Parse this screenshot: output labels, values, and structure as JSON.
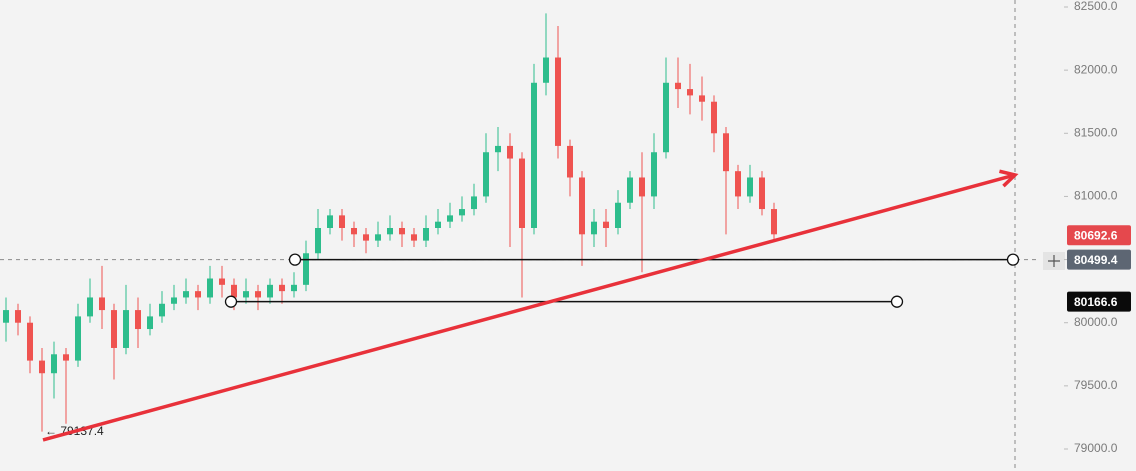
{
  "chart_data": {
    "type": "candlestick",
    "open": [
      80000,
      80100,
      80000,
      79700,
      79600,
      79750,
      79700,
      80050,
      80200,
      80100,
      79800,
      80100,
      79950,
      80050,
      80150,
      80200,
      80250,
      80200,
      80350,
      80300,
      80200,
      80250,
      80200,
      80300,
      80250,
      80300,
      80550,
      80750,
      80850,
      80750,
      80700,
      80650,
      80700,
      80750,
      80700,
      80650,
      80750,
      80800,
      80850,
      80900,
      81000,
      81350,
      81400,
      81300,
      80750,
      81900,
      82100,
      81400,
      81150,
      80700,
      80800,
      80750,
      80950,
      81150,
      81000,
      81350,
      81900,
      81850,
      81800,
      81750,
      81500,
      81200,
      81000,
      81150,
      80900
    ],
    "high": [
      80200,
      80150,
      80050,
      79800,
      79850,
      79800,
      80150,
      80350,
      80450,
      80150,
      80300,
      80200,
      80150,
      80250,
      80300,
      80350,
      80300,
      80450,
      80450,
      80350,
      80350,
      80300,
      80350,
      80350,
      80400,
      80650,
      80900,
      80900,
      80900,
      80800,
      80750,
      80800,
      80850,
      80800,
      80750,
      80850,
      80900,
      80950,
      81000,
      81100,
      81500,
      81550,
      81500,
      81350,
      82050,
      82450,
      82350,
      81450,
      81200,
      80900,
      80900,
      81050,
      81200,
      81350,
      81500,
      82100,
      82100,
      82050,
      81950,
      81800,
      81550,
      81250,
      81250,
      81200,
      80950
    ],
    "low": [
      79850,
      79900,
      79600,
      79137.4,
      79400,
      79200,
      79650,
      80000,
      79950,
      79550,
      79750,
      79800,
      79900,
      80000,
      80100,
      80150,
      80100,
      80150,
      80200,
      80100,
      80150,
      80100,
      80150,
      80150,
      80200,
      80250,
      80500,
      80700,
      80650,
      80600,
      80550,
      80600,
      80650,
      80600,
      80600,
      80600,
      80700,
      80750,
      80800,
      80850,
      80950,
      81200,
      80600,
      80200,
      80700,
      81800,
      81300,
      81000,
      80450,
      80600,
      80600,
      80700,
      80900,
      80400,
      80900,
      81300,
      81700,
      81650,
      81600,
      81350,
      80700,
      80900,
      80950,
      80850,
      80650
    ],
    "close": [
      80100,
      80000,
      79700,
      79600,
      79750,
      79700,
      80050,
      80200,
      80100,
      79800,
      80100,
      79950,
      80050,
      80150,
      80200,
      80250,
      80200,
      80350,
      80300,
      80200,
      80250,
      80200,
      80300,
      80250,
      80300,
      80550,
      80750,
      80850,
      80750,
      80700,
      80650,
      80700,
      80750,
      80700,
      80650,
      80750,
      80800,
      80850,
      80900,
      81000,
      81350,
      81400,
      81300,
      80750,
      81900,
      82100,
      81400,
      81150,
      80700,
      80800,
      80750,
      80950,
      81150,
      81000,
      81350,
      81900,
      81850,
      81800,
      81750,
      81500,
      81200,
      81000,
      81150,
      80900,
      80700
    ],
    "up_color": "#2dbd8c",
    "down_color": "#ef5350",
    "ylim": [
      79000,
      82500
    ],
    "yticks": [
      {
        "value": 79000,
        "label": "79000.0"
      },
      {
        "value": 79500,
        "label": "79500.0"
      },
      {
        "value": 80000,
        "label": "80000.0"
      },
      {
        "value": 80500,
        "label": "80500.0"
      },
      {
        "value": 81000,
        "label": "81000.0"
      },
      {
        "value": 81500,
        "label": "81500.0"
      },
      {
        "value": 82000,
        "label": "82000.0"
      },
      {
        "value": 82500,
        "label": "82500.0"
      }
    ],
    "low_label": "← 79137.4",
    "price_labels": [
      80692.6,
      80499.4,
      80166.6
    ],
    "price_label_colors": [
      "#e5484d",
      "#5d6673",
      "#0a0a0a"
    ],
    "horizontal_lines": [
      80499.4,
      80166.6
    ],
    "trendline": {
      "start": 79072,
      "end": 81170,
      "color": "#e8313a"
    }
  }
}
